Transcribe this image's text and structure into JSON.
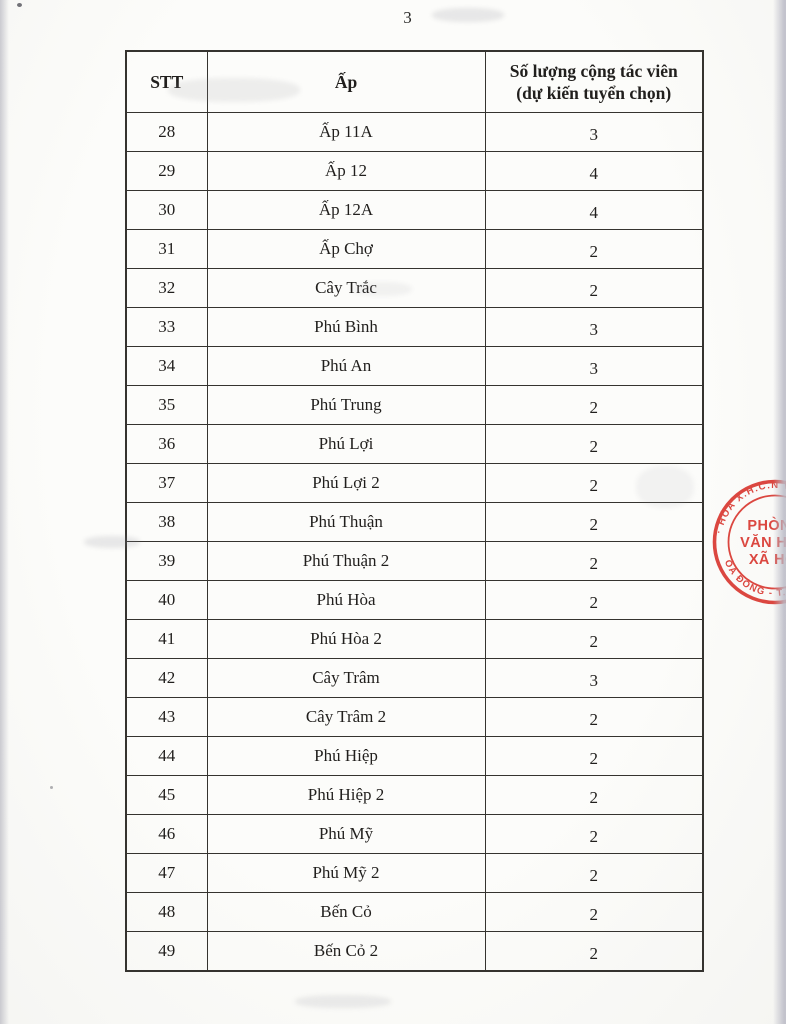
{
  "page": {
    "number": "3"
  },
  "table": {
    "headers": {
      "stt": "STT",
      "hamlet": "Ấp",
      "count_line1": "Số lượng cộng tác viên",
      "count_line2": "(dự kiến tuyển chọn)"
    },
    "rows": [
      {
        "stt": "28",
        "hamlet": "Ấp 11A",
        "count": "3"
      },
      {
        "stt": "29",
        "hamlet": "Ấp 12",
        "count": "4"
      },
      {
        "stt": "30",
        "hamlet": "Ấp 12A",
        "count": "4"
      },
      {
        "stt": "31",
        "hamlet": "Ấp Chợ",
        "count": "2"
      },
      {
        "stt": "32",
        "hamlet": "Cây Trắc",
        "count": "2"
      },
      {
        "stt": "33",
        "hamlet": "Phú Bình",
        "count": "3"
      },
      {
        "stt": "34",
        "hamlet": "Phú An",
        "count": "3"
      },
      {
        "stt": "35",
        "hamlet": "Phú Trung",
        "count": "2"
      },
      {
        "stt": "36",
        "hamlet": "Phú Lợi",
        "count": "2"
      },
      {
        "stt": "37",
        "hamlet": "Phú Lợi 2",
        "count": "2"
      },
      {
        "stt": "38",
        "hamlet": "Phú Thuận",
        "count": "2"
      },
      {
        "stt": "39",
        "hamlet": "Phú Thuận 2",
        "count": "2"
      },
      {
        "stt": "40",
        "hamlet": "Phú Hòa",
        "count": "2"
      },
      {
        "stt": "41",
        "hamlet": "Phú Hòa 2",
        "count": "2"
      },
      {
        "stt": "42",
        "hamlet": "Cây Trâm",
        "count": "3"
      },
      {
        "stt": "43",
        "hamlet": "Cây Trâm 2",
        "count": "2"
      },
      {
        "stt": "44",
        "hamlet": "Phú Hiệp",
        "count": "2"
      },
      {
        "stt": "45",
        "hamlet": "Phú Hiệp 2",
        "count": "2"
      },
      {
        "stt": "46",
        "hamlet": "Phú Mỹ",
        "count": "2"
      },
      {
        "stt": "47",
        "hamlet": "Phú Mỹ 2",
        "count": "2"
      },
      {
        "stt": "48",
        "hamlet": "Bến Cỏ",
        "count": "2"
      },
      {
        "stt": "49",
        "hamlet": "Bến Cỏ 2",
        "count": "2"
      }
    ]
  },
  "stamp": {
    "arc_top": "· HÒA X.H.C.N VIỆ",
    "line1": "PHÒNG",
    "line2": "VĂN HÓA",
    "line3": "XÃ HỘI",
    "arc_bottom": "ÒA ĐÔNG - T.P V",
    "color": "#d93a33"
  }
}
